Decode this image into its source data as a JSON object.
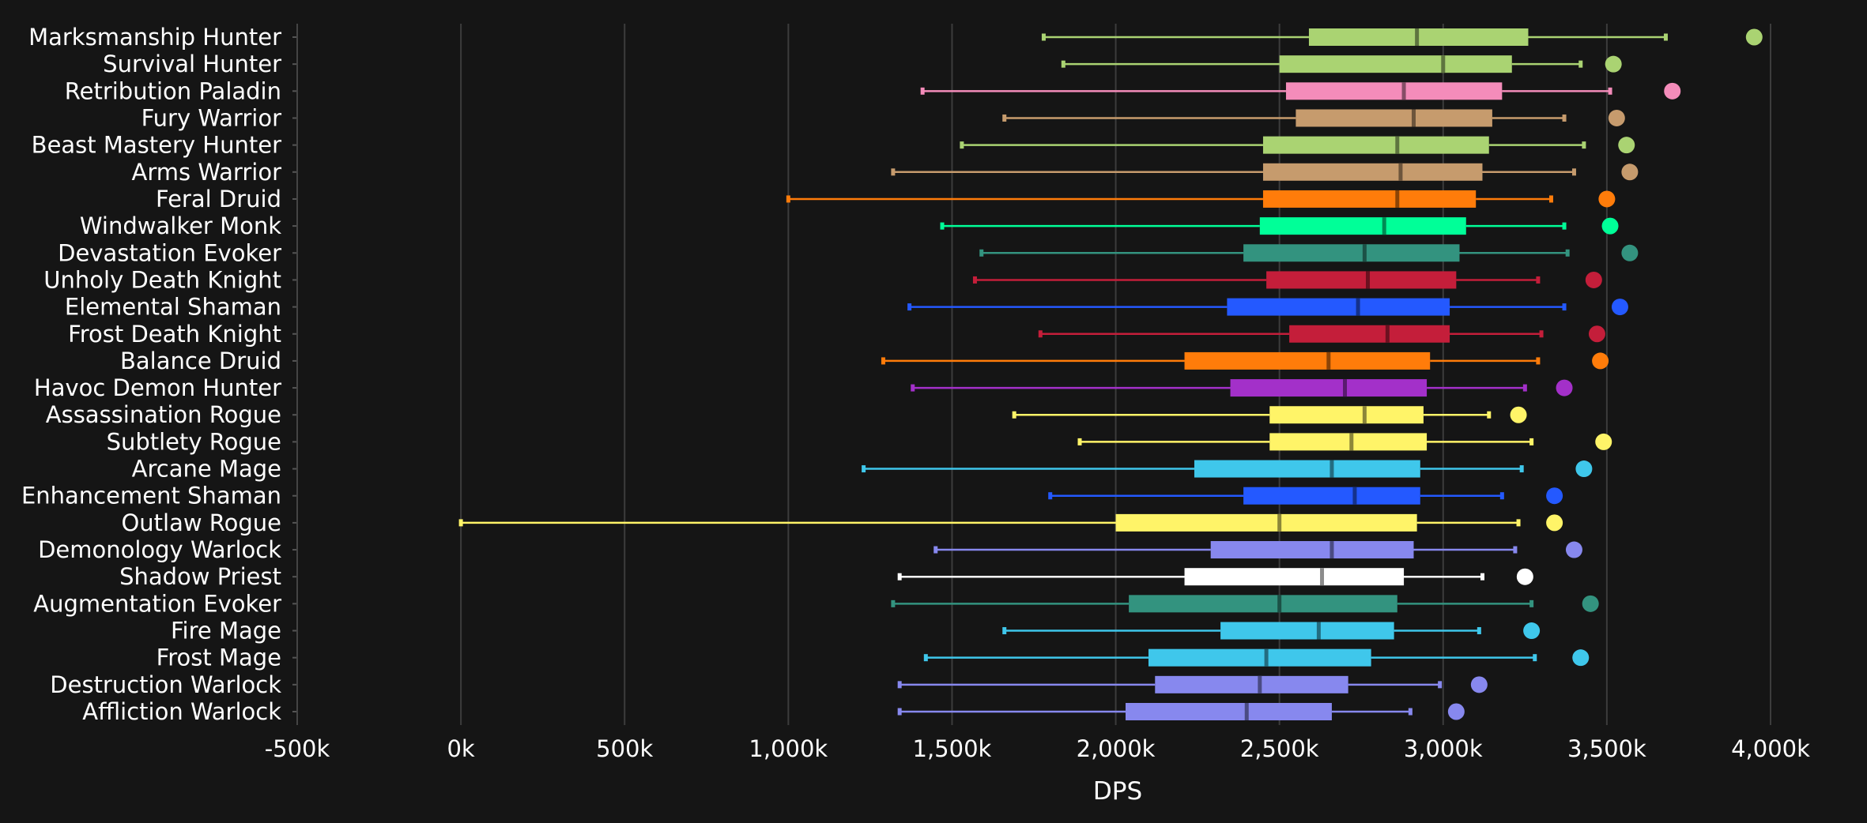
{
  "chart_data": {
    "type": "boxplot",
    "orientation": "horizontal",
    "xlabel": "DPS",
    "xlim": [
      -500000,
      4000000
    ],
    "x_ticks": [
      -500000,
      0,
      500000,
      1000000,
      1500000,
      2000000,
      2500000,
      3000000,
      3500000,
      4000000
    ],
    "x_tick_labels": [
      "-500k",
      "0k",
      "500k",
      "1,000k",
      "1,500k",
      "2,000k",
      "2,500k",
      "3,000k",
      "3,500k",
      "4,000k"
    ],
    "grid": true,
    "series": [
      {
        "name": "Marksmanship Hunter",
        "color": "#AAD372",
        "min": 1780000,
        "q1": 2590000,
        "median": 2920000,
        "q3": 3260000,
        "max": 3680000,
        "outlier": 3950000
      },
      {
        "name": "Survival Hunter",
        "color": "#AAD372",
        "min": 1840000,
        "q1": 2500000,
        "median": 3000000,
        "q3": 3210000,
        "max": 3420000,
        "outlier": 3520000
      },
      {
        "name": "Retribution Paladin",
        "color": "#F48CBA",
        "min": 1410000,
        "q1": 2520000,
        "median": 2880000,
        "q3": 3180000,
        "max": 3510000,
        "outlier": 3700000
      },
      {
        "name": "Fury Warrior",
        "color": "#C69B6D",
        "min": 1660000,
        "q1": 2550000,
        "median": 2910000,
        "q3": 3150000,
        "max": 3370000,
        "outlier": 3530000
      },
      {
        "name": "Beast Mastery Hunter",
        "color": "#AAD372",
        "min": 1530000,
        "q1": 2450000,
        "median": 2860000,
        "q3": 3140000,
        "max": 3430000,
        "outlier": 3560000
      },
      {
        "name": "Arms Warrior",
        "color": "#C69B6D",
        "min": 1320000,
        "q1": 2450000,
        "median": 2870000,
        "q3": 3120000,
        "max": 3400000,
        "outlier": 3570000
      },
      {
        "name": "Feral Druid",
        "color": "#FF7C0A",
        "min": 1000000,
        "q1": 2450000,
        "median": 2860000,
        "q3": 3100000,
        "max": 3330000,
        "outlier": 3500000
      },
      {
        "name": "Windwalker Monk",
        "color": "#00FF98",
        "min": 1470000,
        "q1": 2440000,
        "median": 2820000,
        "q3": 3070000,
        "max": 3370000,
        "outlier": 3510000
      },
      {
        "name": "Devastation Evoker",
        "color": "#33937F",
        "min": 1590000,
        "q1": 2390000,
        "median": 2760000,
        "q3": 3050000,
        "max": 3380000,
        "outlier": 3570000
      },
      {
        "name": "Unholy Death Knight",
        "color": "#C41E3A",
        "min": 1570000,
        "q1": 2460000,
        "median": 2770000,
        "q3": 3040000,
        "max": 3290000,
        "outlier": 3460000
      },
      {
        "name": "Elemental Shaman",
        "color": "#2459FF",
        "min": 1370000,
        "q1": 2340000,
        "median": 2740000,
        "q3": 3020000,
        "max": 3370000,
        "outlier": 3540000
      },
      {
        "name": "Frost Death Knight",
        "color": "#C41E3A",
        "min": 1770000,
        "q1": 2530000,
        "median": 2830000,
        "q3": 3020000,
        "max": 3300000,
        "outlier": 3470000
      },
      {
        "name": "Balance Druid",
        "color": "#FF7C0A",
        "min": 1290000,
        "q1": 2210000,
        "median": 2650000,
        "q3": 2960000,
        "max": 3290000,
        "outlier": 3480000
      },
      {
        "name": "Havoc Demon Hunter",
        "color": "#A330C9",
        "min": 1380000,
        "q1": 2350000,
        "median": 2700000,
        "q3": 2950000,
        "max": 3250000,
        "outlier": 3370000
      },
      {
        "name": "Assassination Rogue",
        "color": "#FFF468",
        "min": 1690000,
        "q1": 2470000,
        "median": 2760000,
        "q3": 2940000,
        "max": 3140000,
        "outlier": 3230000
      },
      {
        "name": "Subtlety Rogue",
        "color": "#FFF468",
        "min": 1890000,
        "q1": 2470000,
        "median": 2720000,
        "q3": 2950000,
        "max": 3270000,
        "outlier": 3490000
      },
      {
        "name": "Arcane Mage",
        "color": "#3FC7EB",
        "min": 1230000,
        "q1": 2240000,
        "median": 2660000,
        "q3": 2930000,
        "max": 3240000,
        "outlier": 3430000
      },
      {
        "name": "Enhancement Shaman",
        "color": "#2459FF",
        "min": 1800000,
        "q1": 2390000,
        "median": 2730000,
        "q3": 2930000,
        "max": 3180000,
        "outlier": 3340000
      },
      {
        "name": "Outlaw Rogue",
        "color": "#FFF468",
        "min": 0,
        "q1": 2000000,
        "median": 2500000,
        "q3": 2920000,
        "max": 3230000,
        "outlier": 3340000
      },
      {
        "name": "Demonology Warlock",
        "color": "#8788EE",
        "min": 1450000,
        "q1": 2290000,
        "median": 2660000,
        "q3": 2910000,
        "max": 3220000,
        "outlier": 3400000
      },
      {
        "name": "Shadow Priest",
        "color": "#FFFFFF",
        "min": 1340000,
        "q1": 2210000,
        "median": 2630000,
        "q3": 2880000,
        "max": 3120000,
        "outlier": 3250000
      },
      {
        "name": "Augmentation Evoker",
        "color": "#33937F",
        "min": 1320000,
        "q1": 2040000,
        "median": 2500000,
        "q3": 2860000,
        "max": 3270000,
        "outlier": 3450000
      },
      {
        "name": "Fire Mage",
        "color": "#3FC7EB",
        "min": 1660000,
        "q1": 2320000,
        "median": 2620000,
        "q3": 2850000,
        "max": 3110000,
        "outlier": 3270000
      },
      {
        "name": "Frost Mage",
        "color": "#3FC7EB",
        "min": 1420000,
        "q1": 2100000,
        "median": 2460000,
        "q3": 2780000,
        "max": 3280000,
        "outlier": 3420000
      },
      {
        "name": "Destruction Warlock",
        "color": "#8788EE",
        "min": 1340000,
        "q1": 2120000,
        "median": 2440000,
        "q3": 2710000,
        "max": 2990000,
        "outlier": 3110000
      },
      {
        "name": "Affliction Warlock",
        "color": "#8788EE",
        "min": 1340000,
        "q1": 2030000,
        "median": 2400000,
        "q3": 2660000,
        "max": 2900000,
        "outlier": 3040000
      }
    ]
  }
}
